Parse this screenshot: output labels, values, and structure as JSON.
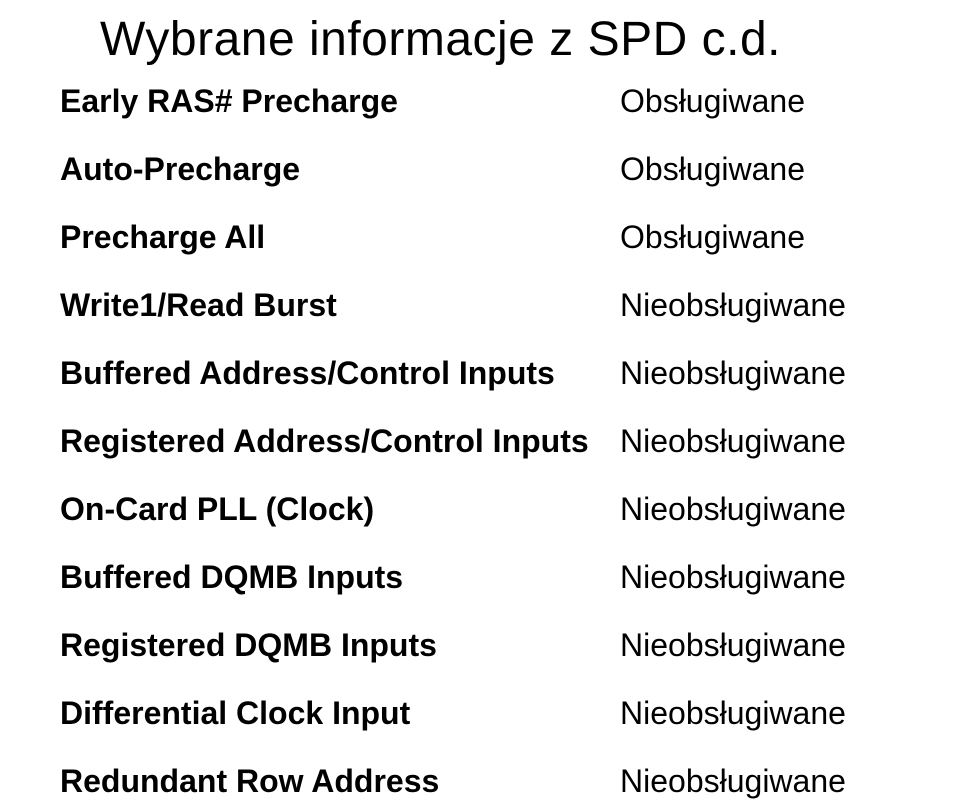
{
  "title": "Wybrane informacje z SPD c.d.",
  "rows": [
    {
      "label": "Early RAS# Precharge",
      "value": "Obsługiwane"
    },
    {
      "label": "Auto-Precharge",
      "value": "Obsługiwane"
    },
    {
      "label": "Precharge All",
      "value": "Obsługiwane"
    },
    {
      "label": "Write1/Read Burst",
      "value": "Nieobsługiwane"
    },
    {
      "label": "Buffered Address/Control Inputs",
      "value": "Nieobsługiwane"
    },
    {
      "label": "Registered Address/Control Inputs",
      "value": "Nieobsługiwane"
    },
    {
      "label": "On-Card PLL (Clock)",
      "value": "Nieobsługiwane"
    },
    {
      "label": "Buffered DQMB Inputs",
      "value": "Nieobsługiwane"
    },
    {
      "label": "Registered DQMB Inputs",
      "value": "Nieobsługiwane"
    },
    {
      "label": "Differential Clock Input",
      "value": "Nieobsługiwane"
    },
    {
      "label": "Redundant Row Address",
      "value": "Nieobsługiwane"
    }
  ],
  "style": {
    "background_color": "#ffffff",
    "text_color": "#000000",
    "title_fontsize": 48,
    "title_fontweight": 400,
    "label_fontsize": 32,
    "label_fontweight": 700,
    "value_fontsize": 32,
    "value_fontweight": 400,
    "font_family": "Arial"
  }
}
